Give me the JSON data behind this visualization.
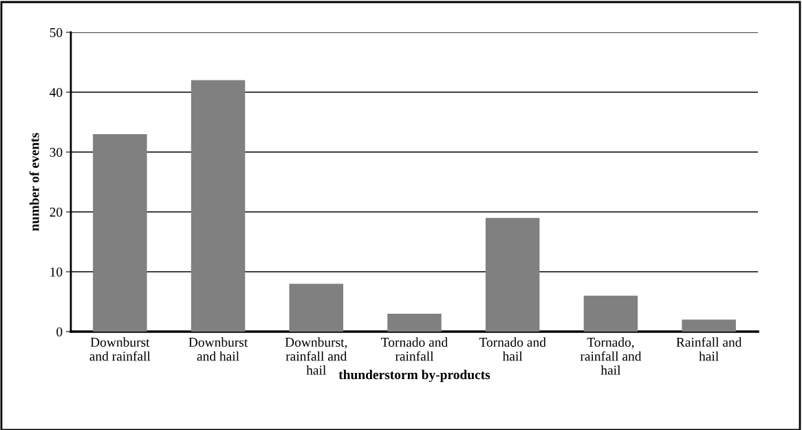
{
  "chart_data": {
    "type": "bar",
    "categories": [
      "Downburst\nand rainfall",
      "Downburst\nand hail",
      "Downburst,\nrainfall and\nhail",
      "Tornado and\nrainfall",
      "Tornado and\nhail",
      "Tornado,\nrainfall and\nhail",
      "Rainfall and\nhail"
    ],
    "values": [
      33,
      42,
      8,
      3,
      19,
      6,
      2
    ],
    "color": "#808080",
    "xlabel": "thunderstorm by-products",
    "ylabel": "number of events",
    "ylim": [
      0,
      50
    ],
    "yticks": [
      0,
      10,
      20,
      30,
      40,
      50
    ],
    "grid": "y",
    "legend": false
  }
}
